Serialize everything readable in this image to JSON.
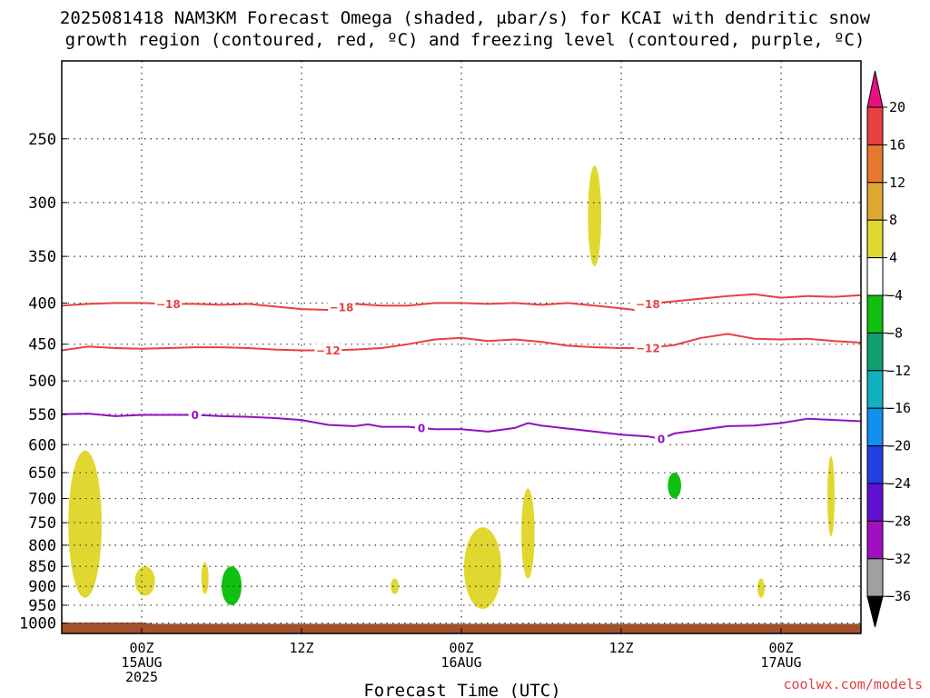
{
  "chart_data": {
    "type": "contour",
    "title_line1": "2025081418 NAM3KM Forecast Omega (shaded, μbar/s) for KCAI with dendritic snow",
    "title_line2": "growth region (contoured, red, ºC) and freezing level (contoured, purple, ºC)",
    "xlabel": "Forecast Time (UTC)",
    "ylabel": "",
    "x_ticks": [
      {
        "hour": 6,
        "label1": "00Z",
        "label2": "15AUG",
        "label3": "2025"
      },
      {
        "hour": 18,
        "label1": "12Z",
        "label2": "",
        "label3": ""
      },
      {
        "hour": 30,
        "label1": "00Z",
        "label2": "16AUG",
        "label3": ""
      },
      {
        "hour": 42,
        "label1": "12Z",
        "label2": "",
        "label3": ""
      },
      {
        "hour": 54,
        "label1": "00Z",
        "label2": "17AUG",
        "label3": ""
      }
    ],
    "xlim": [
      0,
      60
    ],
    "y_ticks": [
      250,
      300,
      350,
      400,
      450,
      500,
      550,
      600,
      650,
      700,
      750,
      800,
      850,
      900,
      950,
      1000
    ],
    "ylim_hPa": [
      200,
      1030
    ],
    "y_scale": "log",
    "grid": "dotted",
    "colorbar": {
      "labels": [
        "20",
        "16",
        "12",
        "8",
        "4",
        "−4",
        "−8",
        "−12",
        "−16",
        "−20",
        "−24",
        "−28",
        "−32",
        "−36"
      ],
      "colors": [
        "#e8107a",
        "#e84040",
        "#e87830",
        "#e0a830",
        "#e0d830",
        "#ffffff",
        "#10c010",
        "#10a070",
        "#10b0c0",
        "#1090f0",
        "#2040e0",
        "#6010d0",
        "#a010c0",
        "#a0a0a0",
        "#000000"
      ]
    },
    "series": [
      {
        "name": "-18",
        "color": "#e84040",
        "label_hours": [
          8,
          21,
          44
        ],
        "points": [
          [
            0,
            403
          ],
          [
            2,
            401
          ],
          [
            4,
            400
          ],
          [
            6,
            400
          ],
          [
            8,
            401
          ],
          [
            10,
            401
          ],
          [
            12,
            402
          ],
          [
            14,
            401
          ],
          [
            16,
            404
          ],
          [
            18,
            407
          ],
          [
            20,
            408
          ],
          [
            21,
            405
          ],
          [
            22,
            401
          ],
          [
            24,
            403
          ],
          [
            26,
            403
          ],
          [
            28,
            400
          ],
          [
            30,
            400
          ],
          [
            32,
            401
          ],
          [
            34,
            400
          ],
          [
            36,
            402
          ],
          [
            38,
            400
          ],
          [
            40,
            403
          ],
          [
            42,
            406
          ],
          [
            43,
            408
          ],
          [
            44,
            401
          ],
          [
            46,
            398
          ],
          [
            48,
            395
          ],
          [
            50,
            392
          ],
          [
            52,
            390
          ],
          [
            54,
            394
          ],
          [
            56,
            392
          ],
          [
            58,
            393
          ],
          [
            60,
            391
          ]
        ]
      },
      {
        "name": "-12",
        "color": "#e84040",
        "label_hours": [
          20,
          44
        ],
        "points": [
          [
            0,
            458
          ],
          [
            2,
            453
          ],
          [
            4,
            455
          ],
          [
            6,
            456
          ],
          [
            8,
            455
          ],
          [
            10,
            454
          ],
          [
            12,
            454
          ],
          [
            14,
            455
          ],
          [
            16,
            457
          ],
          [
            18,
            458
          ],
          [
            20,
            458
          ],
          [
            22,
            457
          ],
          [
            24,
            455
          ],
          [
            26,
            450
          ],
          [
            28,
            444
          ],
          [
            30,
            442
          ],
          [
            32,
            446
          ],
          [
            34,
            444
          ],
          [
            36,
            447
          ],
          [
            38,
            452
          ],
          [
            40,
            454
          ],
          [
            42,
            455
          ],
          [
            44,
            455
          ],
          [
            46,
            451
          ],
          [
            48,
            442
          ],
          [
            50,
            437
          ],
          [
            52,
            443
          ],
          [
            54,
            444
          ],
          [
            56,
            443
          ],
          [
            58,
            446
          ],
          [
            60,
            448
          ]
        ]
      },
      {
        "name": "0",
        "color": "#9010c0",
        "label_hours": [
          10,
          27,
          45
        ],
        "points": [
          [
            0,
            550
          ],
          [
            2,
            549
          ],
          [
            4,
            553
          ],
          [
            6,
            551
          ],
          [
            8,
            551
          ],
          [
            10,
            551
          ],
          [
            12,
            553
          ],
          [
            14,
            554
          ],
          [
            16,
            556
          ],
          [
            18,
            559
          ],
          [
            20,
            567
          ],
          [
            22,
            569
          ],
          [
            23,
            566
          ],
          [
            24,
            570
          ],
          [
            26,
            570
          ],
          [
            28,
            574
          ],
          [
            30,
            574
          ],
          [
            32,
            578
          ],
          [
            34,
            572
          ],
          [
            35,
            564
          ],
          [
            36,
            568
          ],
          [
            38,
            573
          ],
          [
            40,
            578
          ],
          [
            42,
            583
          ],
          [
            44,
            586
          ],
          [
            45,
            590
          ],
          [
            46,
            581
          ],
          [
            48,
            575
          ],
          [
            50,
            569
          ],
          [
            52,
            568
          ],
          [
            54,
            564
          ],
          [
            56,
            557
          ],
          [
            58,
            559
          ],
          [
            60,
            561
          ]
        ]
      }
    ],
    "omega_features": [
      {
        "value": "4 to 8",
        "color": "#e0d830",
        "hours": [
          0.5,
          3
        ],
        "hPa": [
          610,
          930
        ]
      },
      {
        "value": "4 to 8",
        "color": "#e0d830",
        "hours": [
          5.5,
          7
        ],
        "hPa": [
          850,
          925
        ]
      },
      {
        "value": "4 to 8",
        "color": "#e0d830",
        "hours": [
          10.5,
          11
        ],
        "hPa": [
          840,
          920
        ]
      },
      {
        "value": "-4 to -8",
        "color": "#10c010",
        "hours": [
          12,
          13.5
        ],
        "hPa": [
          850,
          950
        ]
      },
      {
        "value": "4 to 8",
        "color": "#e0d830",
        "hours": [
          24.7,
          25.3
        ],
        "hPa": [
          880,
          920
        ]
      },
      {
        "value": "4 to 8",
        "color": "#e0d830",
        "hours": [
          30.2,
          33
        ],
        "hPa": [
          760,
          960
        ]
      },
      {
        "value": "4 to 8",
        "color": "#e0d830",
        "hours": [
          34.5,
          35.5
        ],
        "hPa": [
          680,
          880
        ]
      },
      {
        "value": "4 to 8",
        "color": "#e0d830",
        "hours": [
          39.5,
          40.5
        ],
        "hPa": [
          270,
          360
        ]
      },
      {
        "value": "-4 to -8",
        "color": "#10c010",
        "hours": [
          45.5,
          46.5
        ],
        "hPa": [
          650,
          700
        ]
      },
      {
        "value": "4 to 8",
        "color": "#e0d830",
        "hours": [
          52.3,
          52.7
        ],
        "hPa": [
          880,
          930
        ]
      },
      {
        "value": "4 to 8",
        "color": "#e0d830",
        "hours": [
          57.5,
          58
        ],
        "hPa": [
          620,
          780
        ]
      }
    ],
    "terrain_color": "#a0522d"
  },
  "credit": "coolwx.com/models"
}
